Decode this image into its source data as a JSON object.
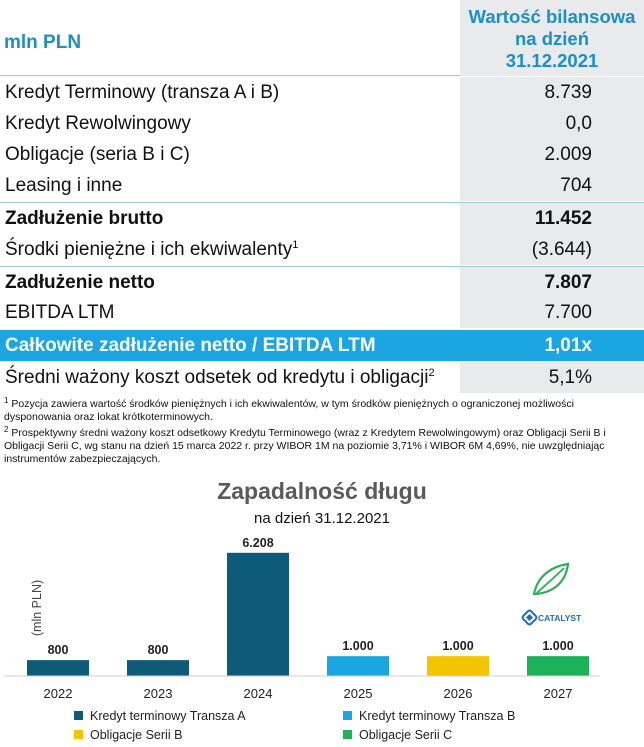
{
  "table": {
    "unit_label": "mln PLN",
    "value_header": [
      "Wartość bilansowa",
      "na dzień",
      "31.12.2021"
    ],
    "rows": [
      {
        "label": "Kredyt Terminowy (transza A i B)",
        "sup": "",
        "value": "8.739"
      },
      {
        "label": "Kredyt Rewolwingowy",
        "sup": "",
        "value": "0,0"
      },
      {
        "label": "Obligacje (seria B i C)",
        "sup": "",
        "value": "2.009"
      },
      {
        "label": "Leasing i inne",
        "sup": "",
        "value": "704"
      },
      {
        "label": "Zadłużenie brutto",
        "sup": "",
        "value": "11.452"
      },
      {
        "label": "Środki pieniężne i ich ekwiwalenty",
        "sup": "1",
        "value": "(3.644)"
      },
      {
        "label": "Zadłużenie netto",
        "sup": "",
        "value": "7.807"
      },
      {
        "label": "EBITDA LTM",
        "sup": "",
        "value": "7.700"
      },
      {
        "label": "Całkowite zadłużenie netto / EBITDA LTM",
        "sup": "",
        "value": "1,01x"
      },
      {
        "label": "Średni ważony koszt odsetek od kredytu i obligacji",
        "sup": "2",
        "value": "5,1%"
      }
    ]
  },
  "footnotes": [
    {
      "mark": "1",
      "text": " Pozycja zawiera wartość środków pieniężnych i ich ekwiwalentów, w tym środków pieniężnych o ograniczonej możliwości dysponowania oraz lokat krótkoterminowych."
    },
    {
      "mark": "2",
      "text": " Prospektywny średni ważony koszt odsetkowy Kredytu Terminowego (wraz z Kredytem Rewolwingowym) oraz Obligacji Serii B i Obligacji Serii C, wg stanu na dzień 15 marca 2022 r. przy WIBOR 1M na poziomie 3,71% i WIBOR 6M 4,69%, nie uwzględniając instrumentów zabezpieczających."
    }
  ],
  "logo_text": "CATALYST",
  "colors": {
    "header_blue": "#1b8fc9",
    "highlight": "#1ba6e2",
    "value_bg": "#e8eaec"
  },
  "chart_data": {
    "type": "bar",
    "title": "Zapadalność długu",
    "subtitle": "na dzień 31.12.2021",
    "ylabel": "(mln PLN)",
    "xlabel": "",
    "categories": [
      "2022",
      "2023",
      "2024",
      "2025",
      "2026",
      "2027"
    ],
    "values": [
      800,
      800,
      6208,
      1000,
      1000,
      1000
    ],
    "value_labels": [
      "800",
      "800",
      "6.208",
      "1.000",
      "1.000",
      "1.000"
    ],
    "bar_series": [
      0,
      0,
      0,
      1,
      2,
      3
    ],
    "ylim": [
      0,
      6500
    ],
    "grid": false,
    "legend_position": "bottom",
    "series": [
      {
        "name": "Kredyt terminowy Transza A",
        "color": "#0d5b78"
      },
      {
        "name": "Kredyt terminowy Transza B",
        "color": "#1ba6e2"
      },
      {
        "name": "Obligacje Serii B",
        "color": "#f5c400"
      },
      {
        "name": "Obligacje Serii C",
        "color": "#1bb35a"
      }
    ]
  }
}
